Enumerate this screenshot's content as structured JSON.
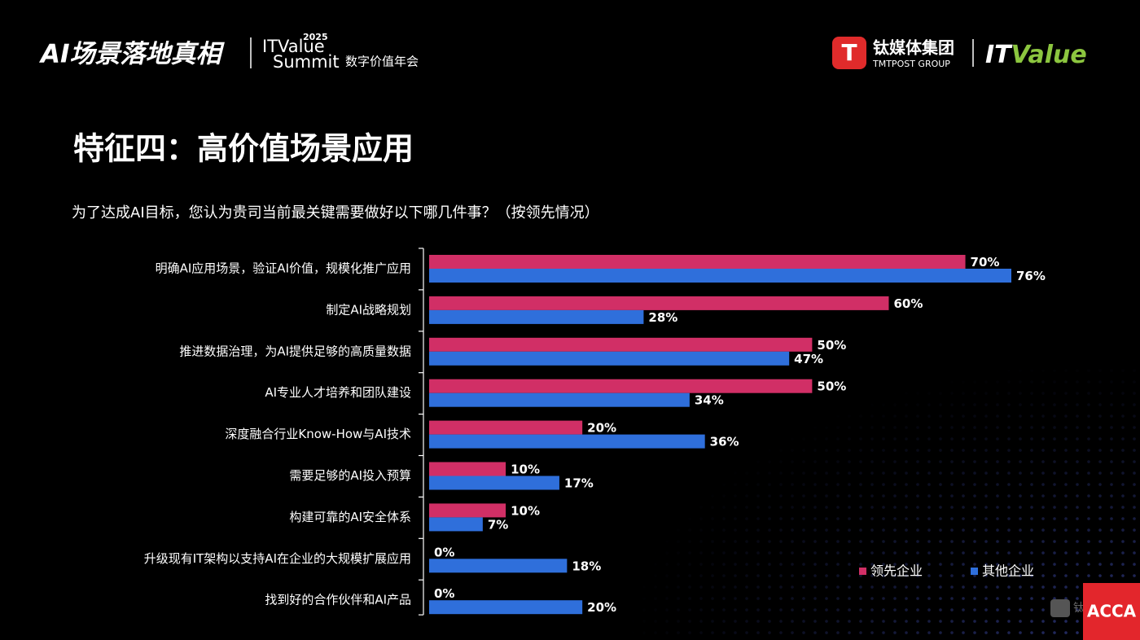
{
  "header": {
    "event": "AI场景落地真相",
    "summit_top": "ITValue",
    "summit_bottom": "Summit",
    "year": "2025",
    "tagline": "数字价值年会",
    "group_cn": "钛媒体集团",
    "group_en": "TMTPOST GROUP",
    "brand_it": "IT",
    "brand_value": "Value"
  },
  "footer": {
    "watermark": "钛媒体",
    "badge": "ACCA"
  },
  "chart_data": {
    "type": "bar",
    "orientation": "horizontal",
    "title": "特征四：高价值场景应用",
    "subtitle": "为了达成AI目标，您认为贵司当前最关键需要做好以下哪几件事？（按领先情况）",
    "categories": [
      "明确AI应用场景，验证AI价值，规模化推广应用",
      "制定AI战略规划",
      "推进数据治理，为AI提供足够的高质量数据",
      "AI专业人才培养和团队建设",
      "深度融合行业Know-How与AI技术",
      "需要足够的AI投入预算",
      "构建可靠的AI安全体系",
      "升级现有IT架构以支持AI在企业的大规模扩展应用",
      "找到好的合作伙伴和AI产品"
    ],
    "series": [
      {
        "name": "领先企业",
        "color": "#d12f66",
        "values": [
          70,
          60,
          50,
          50,
          20,
          10,
          10,
          0,
          0
        ],
        "value_labels": [
          "70%",
          "60%",
          "50%",
          "50%",
          "20%",
          "10%",
          "10%",
          "0%",
          "0%"
        ]
      },
      {
        "name": "其他企业",
        "color": "#2f6fdb",
        "values": [
          76,
          28,
          47,
          34,
          36,
          17,
          7,
          18,
          20
        ],
        "value_labels": [
          "76%",
          "28%",
          "47%",
          "34%",
          "36%",
          "17%",
          "7%",
          "18%",
          "20%"
        ]
      }
    ],
    "legend": "bottom-right"
  }
}
